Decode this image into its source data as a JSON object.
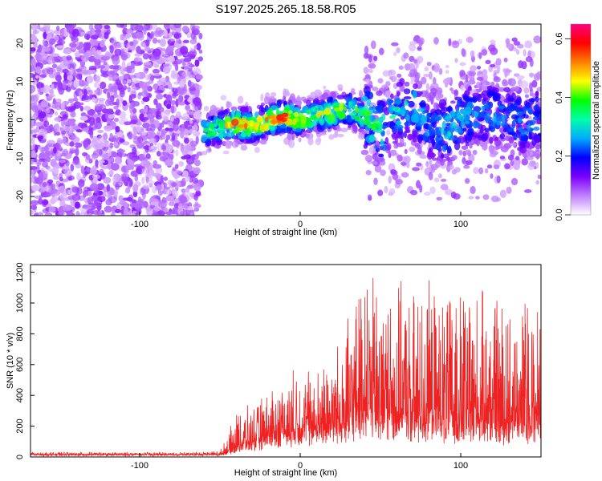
{
  "figure": {
    "title": "S197.2025.265.18.58.R05"
  },
  "chart_data": [
    {
      "type": "heatmap",
      "xlabel": "Height of straight line (km)",
      "ylabel": "Frequency (Hz)",
      "xlim": [
        -168,
        150
      ],
      "ylim": [
        -25,
        25
      ],
      "xticks": [
        -100,
        0,
        100
      ],
      "yticks": [
        -20,
        -10,
        0,
        10,
        20
      ],
      "colorbar": {
        "label": "Normalized spectral amplitude",
        "range": [
          0.0,
          0.65
        ],
        "ticks": [
          "0.0",
          "0.2",
          "0.4",
          "0.6"
        ],
        "colors": [
          "#ffffff",
          "#c080ff",
          "#7a00ff",
          "#0000ff",
          "#00aaff",
          "#00ffaa",
          "#00ff00",
          "#ffff00",
          "#ff8000",
          "#ff0000",
          "#ff0080"
        ]
      },
      "noise_region_x": [
        -168,
        -62
      ],
      "signal_track": {
        "x": [
          -60,
          -50,
          -40,
          -30,
          -20,
          -10,
          0,
          10,
          20,
          30,
          40,
          50,
          60,
          70,
          80,
          90,
          100,
          110,
          120,
          130,
          140,
          150
        ],
        "center_hz": [
          -3,
          -2,
          -1,
          -2,
          0,
          1,
          0,
          1,
          2,
          3,
          1,
          -3,
          2,
          4,
          -2,
          -3,
          0,
          1,
          2,
          1,
          -1,
          1
        ],
        "peak_amplitude": [
          0.35,
          0.45,
          0.55,
          0.5,
          0.55,
          0.6,
          0.45,
          0.45,
          0.45,
          0.45,
          0.4,
          0.35,
          0.3,
          0.3,
          0.25,
          0.3,
          0.3,
          0.25,
          0.25,
          0.25,
          0.25,
          0.25
        ]
      }
    },
    {
      "type": "line",
      "xlabel": "Height of straight line (km)",
      "ylabel": "SNR (10 * v/v)",
      "xlim": [
        -168,
        150
      ],
      "ylim": [
        0,
        1250
      ],
      "xticks": [
        -100,
        0,
        100
      ],
      "yticks": [
        0,
        200,
        400,
        600,
        800,
        1000,
        1200
      ],
      "series": [
        {
          "color": "#ee2222",
          "envelope": {
            "x": [
              -168,
              -70,
              -50,
              -45,
              -40,
              -30,
              -20,
              -10,
              0,
              10,
              20,
              30,
              40,
              50,
              60,
              70,
              80,
              90,
              100,
              110,
              120,
              130,
              140,
              150
            ],
            "baseline": [
              15,
              15,
              15,
              30,
              60,
              80,
              110,
              140,
              160,
              170,
              200,
              220,
              250,
              240,
              230,
              210,
              220,
              200,
              210,
              200,
              190,
              180,
              190,
              200
            ],
            "peak": [
              30,
              30,
              40,
              140,
              290,
              330,
              420,
              500,
              580,
              560,
              640,
              860,
              1230,
              1050,
              1100,
              1070,
              1090,
              1050,
              1040,
              1080,
              1020,
              1000,
              1030,
              960
            ]
          }
        }
      ]
    }
  ]
}
